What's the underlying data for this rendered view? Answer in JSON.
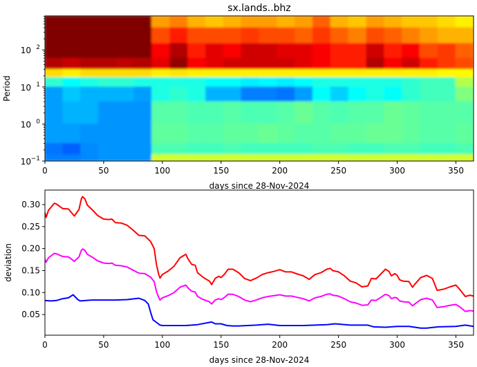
{
  "chart_data": [
    {
      "type": "heatmap",
      "title": "sx.lands..bhz",
      "xlabel": "days since 28-Nov-2024",
      "ylabel": "Period",
      "xlim": [
        0,
        365
      ],
      "ylim": [
        0.1,
        830
      ],
      "yscale": "log",
      "colormap": "jet",
      "xticks": [
        0,
        50,
        100,
        150,
        200,
        250,
        300,
        350
      ],
      "yticks": [
        {
          "base": "10",
          "exp": "−1",
          "value": 0.1
        },
        {
          "base": "10",
          "exp": "0",
          "value": 1
        },
        {
          "base": "10",
          "exp": "1",
          "value": 10
        },
        {
          "base": "10",
          "exp": "2",
          "value": 100
        }
      ],
      "time_bin_edges": [
        0,
        15.2,
        30.4,
        45.6,
        60.8,
        76,
        91,
        106.5,
        121.7,
        136.9,
        152.1,
        167.3,
        182.5,
        197.7,
        212.9,
        228.1,
        243.3,
        258.5,
        273.8,
        289,
        304.2,
        319.4,
        334.6,
        349.8,
        365
      ],
      "period_band_edges": [
        830,
        400,
        150,
        60,
        30,
        18,
        10,
        4,
        1,
        0.3,
        0.15,
        0.1
      ],
      "values_normalized": [
        [
          1,
          1,
          1,
          1,
          1,
          1,
          0.72,
          0.75,
          0.7,
          0.68,
          0.7,
          0.72,
          0.72,
          0.7,
          0.72,
          0.78,
          0.7,
          0.68,
          0.72,
          0.7,
          0.68,
          0.68,
          0.66,
          0.64
        ],
        [
          1,
          1,
          1,
          1,
          1,
          1,
          0.8,
          0.85,
          0.8,
          0.8,
          0.8,
          0.82,
          0.8,
          0.8,
          0.78,
          0.82,
          0.78,
          0.75,
          0.8,
          0.78,
          0.75,
          0.72,
          0.7,
          0.7
        ],
        [
          1,
          1,
          1,
          1,
          1,
          1,
          0.88,
          0.95,
          0.85,
          0.9,
          0.88,
          0.92,
          0.92,
          0.9,
          0.9,
          0.88,
          0.85,
          0.85,
          0.92,
          0.85,
          0.88,
          0.8,
          0.82,
          0.78
        ],
        [
          0.95,
          0.93,
          0.95,
          0.95,
          0.94,
          0.95,
          0.9,
          0.98,
          0.88,
          0.9,
          0.92,
          0.92,
          0.92,
          0.92,
          0.9,
          0.88,
          0.85,
          0.85,
          0.95,
          0.88,
          0.92,
          0.85,
          0.82,
          0.8
        ],
        [
          0.66,
          0.64,
          0.66,
          0.66,
          0.66,
          0.66,
          0.64,
          0.65,
          0.64,
          0.64,
          0.64,
          0.64,
          0.64,
          0.64,
          0.64,
          0.64,
          0.64,
          0.64,
          0.64,
          0.64,
          0.64,
          0.64,
          0.63,
          0.63
        ],
        [
          0.42,
          0.38,
          0.4,
          0.42,
          0.42,
          0.4,
          0.4,
          0.4,
          0.4,
          0.38,
          0.38,
          0.36,
          0.37,
          0.36,
          0.38,
          0.4,
          0.4,
          0.4,
          0.4,
          0.4,
          0.42,
          0.44,
          0.44,
          0.55
        ],
        [
          0.28,
          0.32,
          0.3,
          0.3,
          0.3,
          0.28,
          0.4,
          0.42,
          0.4,
          0.3,
          0.3,
          0.25,
          0.25,
          0.24,
          0.28,
          0.38,
          0.33,
          0.38,
          0.4,
          0.38,
          0.42,
          0.44,
          0.44,
          0.5
        ],
        [
          0.28,
          0.3,
          0.3,
          0.27,
          0.27,
          0.27,
          0.46,
          0.46,
          0.45,
          0.45,
          0.46,
          0.45,
          0.45,
          0.46,
          0.48,
          0.46,
          0.45,
          0.46,
          0.46,
          0.48,
          0.47,
          0.46,
          0.46,
          0.46
        ],
        [
          0.28,
          0.28,
          0.27,
          0.27,
          0.27,
          0.27,
          0.47,
          0.47,
          0.46,
          0.46,
          0.47,
          0.47,
          0.48,
          0.47,
          0.46,
          0.46,
          0.47,
          0.47,
          0.48,
          0.48,
          0.47,
          0.46,
          0.46,
          0.47
        ],
        [
          0.24,
          0.22,
          0.26,
          0.27,
          0.27,
          0.27,
          0.45,
          0.45,
          0.44,
          0.44,
          0.45,
          0.44,
          0.44,
          0.44,
          0.44,
          0.45,
          0.45,
          0.44,
          0.44,
          0.45,
          0.45,
          0.44,
          0.44,
          0.45
        ],
        [
          0.25,
          0.25,
          0.26,
          0.27,
          0.27,
          0.27,
          0.58,
          0.58,
          0.58,
          0.58,
          0.58,
          0.58,
          0.58,
          0.58,
          0.58,
          0.58,
          0.58,
          0.58,
          0.58,
          0.58,
          0.58,
          0.58,
          0.58,
          0.58
        ]
      ]
    },
    {
      "type": "line",
      "xlabel": "days since 28-Nov-2024",
      "ylabel": "deviation",
      "xlim": [
        0,
        365
      ],
      "ylim": [
        0.003,
        0.333
      ],
      "xticks": [
        0,
        50,
        100,
        150,
        200,
        250,
        300,
        350
      ],
      "yticks": [
        "0.05",
        "0.10",
        "0.15",
        "0.20",
        "0.25",
        "0.30"
      ],
      "series": [
        {
          "color": "#ff0000",
          "x": [
            0,
            1,
            3,
            8,
            10,
            15,
            20,
            25,
            29,
            31,
            32,
            34,
            36,
            40,
            45,
            50,
            55,
            57,
            60,
            65,
            70,
            75,
            80,
            85,
            90,
            93,
            95,
            97,
            98,
            100,
            105,
            110,
            115,
            120,
            122,
            125,
            128,
            130,
            135,
            140,
            142,
            145,
            148,
            150,
            153,
            156,
            160,
            165,
            170,
            175,
            180,
            185,
            190,
            195,
            200,
            205,
            210,
            215,
            220,
            225,
            230,
            235,
            240,
            243,
            245,
            250,
            255,
            260,
            265,
            270,
            275,
            278,
            282,
            286,
            290,
            293,
            295,
            298,
            300,
            302,
            305,
            310,
            313,
            315,
            320,
            325,
            330,
            334,
            340,
            345,
            350,
            353,
            358,
            362,
            365
          ],
          "y": [
            0.282,
            0.271,
            0.287,
            0.303,
            0.301,
            0.291,
            0.29,
            0.274,
            0.289,
            0.313,
            0.318,
            0.313,
            0.299,
            0.289,
            0.275,
            0.267,
            0.266,
            0.267,
            0.259,
            0.258,
            0.253,
            0.242,
            0.23,
            0.229,
            0.216,
            0.2,
            0.163,
            0.14,
            0.133,
            0.141,
            0.149,
            0.16,
            0.179,
            0.187,
            0.176,
            0.164,
            0.162,
            0.145,
            0.134,
            0.126,
            0.118,
            0.132,
            0.137,
            0.134,
            0.142,
            0.153,
            0.153,
            0.145,
            0.132,
            0.127,
            0.133,
            0.141,
            0.145,
            0.148,
            0.152,
            0.147,
            0.147,
            0.142,
            0.138,
            0.13,
            0.141,
            0.145,
            0.153,
            0.155,
            0.15,
            0.147,
            0.138,
            0.126,
            0.122,
            0.113,
            0.115,
            0.132,
            0.131,
            0.142,
            0.153,
            0.148,
            0.138,
            0.143,
            0.139,
            0.129,
            0.126,
            0.125,
            0.112,
            0.119,
            0.134,
            0.139,
            0.132,
            0.105,
            0.108,
            0.113,
            0.117,
            0.108,
            0.091,
            0.094,
            0.092
          ]
        },
        {
          "color": "#ff00ff",
          "x": [
            0,
            1,
            3,
            8,
            10,
            15,
            20,
            25,
            29,
            31,
            32,
            34,
            36,
            40,
            45,
            50,
            55,
            57,
            60,
            65,
            70,
            75,
            80,
            85,
            90,
            93,
            95,
            97,
            98,
            100,
            105,
            110,
            115,
            120,
            122,
            125,
            128,
            130,
            135,
            140,
            142,
            145,
            148,
            150,
            153,
            156,
            160,
            165,
            170,
            175,
            180,
            185,
            190,
            195,
            200,
            205,
            210,
            215,
            220,
            225,
            230,
            235,
            240,
            243,
            245,
            250,
            255,
            260,
            265,
            270,
            275,
            278,
            282,
            286,
            290,
            293,
            295,
            298,
            300,
            302,
            305,
            310,
            313,
            315,
            320,
            325,
            330,
            334,
            340,
            345,
            350,
            353,
            358,
            362,
            365
          ],
          "y": [
            0.176,
            0.169,
            0.179,
            0.189,
            0.188,
            0.182,
            0.181,
            0.171,
            0.181,
            0.196,
            0.199,
            0.196,
            0.187,
            0.181,
            0.172,
            0.167,
            0.166,
            0.167,
            0.162,
            0.161,
            0.158,
            0.151,
            0.144,
            0.143,
            0.135,
            0.125,
            0.102,
            0.088,
            0.083,
            0.088,
            0.093,
            0.1,
            0.112,
            0.117,
            0.11,
            0.103,
            0.101,
            0.091,
            0.084,
            0.079,
            0.074,
            0.083,
            0.086,
            0.084,
            0.089,
            0.096,
            0.096,
            0.091,
            0.083,
            0.079,
            0.083,
            0.088,
            0.091,
            0.093,
            0.095,
            0.092,
            0.092,
            0.089,
            0.086,
            0.081,
            0.088,
            0.091,
            0.096,
            0.097,
            0.094,
            0.092,
            0.086,
            0.079,
            0.076,
            0.071,
            0.072,
            0.083,
            0.082,
            0.089,
            0.096,
            0.093,
            0.086,
            0.089,
            0.087,
            0.081,
            0.079,
            0.078,
            0.07,
            0.074,
            0.084,
            0.087,
            0.083,
            0.066,
            0.068,
            0.071,
            0.073,
            0.068,
            0.057,
            0.059,
            0.058
          ]
        },
        {
          "color": "#0000ff",
          "x": [
            0,
            5,
            10,
            15,
            20,
            24,
            28,
            30,
            40,
            50,
            60,
            70,
            80,
            85,
            88,
            90,
            92,
            95,
            98,
            100,
            110,
            120,
            130,
            140,
            142,
            145,
            150,
            155,
            160,
            165,
            180,
            190,
            200,
            220,
            240,
            247,
            260,
            275,
            280,
            290,
            300,
            310,
            320,
            325,
            335,
            350,
            358,
            365
          ],
          "y": [
            0.082,
            0.081,
            0.082,
            0.086,
            0.088,
            0.095,
            0.084,
            0.081,
            0.083,
            0.083,
            0.083,
            0.084,
            0.087,
            0.082,
            0.074,
            0.055,
            0.038,
            0.032,
            0.026,
            0.025,
            0.025,
            0.025,
            0.027,
            0.032,
            0.033,
            0.029,
            0.029,
            0.025,
            0.024,
            0.024,
            0.026,
            0.028,
            0.025,
            0.025,
            0.027,
            0.029,
            0.026,
            0.026,
            0.022,
            0.021,
            0.023,
            0.023,
            0.019,
            0.019,
            0.022,
            0.023,
            0.026,
            0.023
          ]
        }
      ]
    }
  ]
}
